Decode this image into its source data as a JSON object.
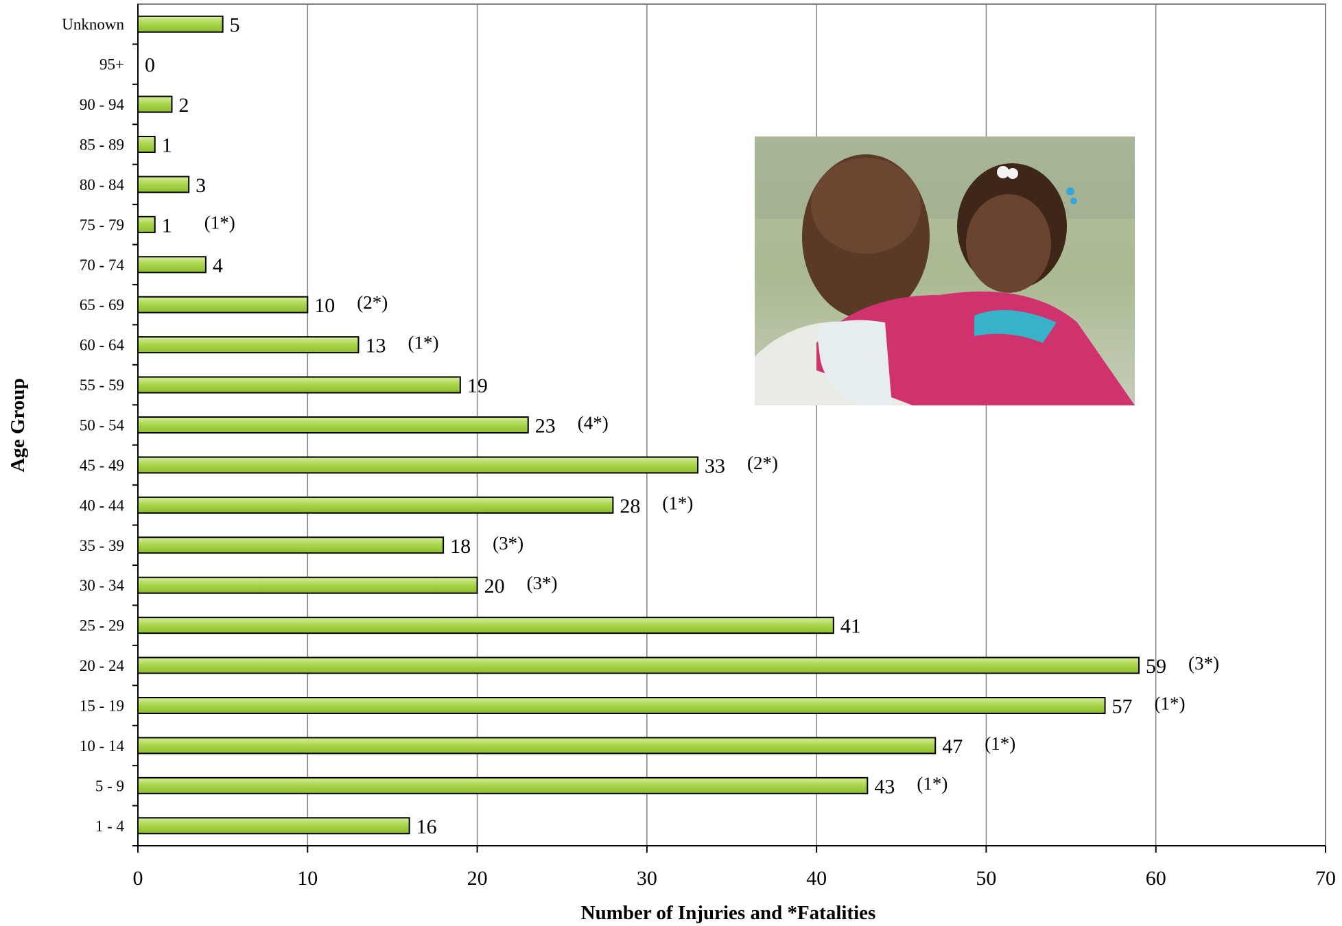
{
  "chart_data": {
    "type": "bar",
    "orientation": "horizontal",
    "xlabel": "Number of Injuries and *Fatalities",
    "ylabel": "Age Group",
    "xlim": [
      0,
      70
    ],
    "x_ticks": [
      "0",
      "10",
      "20",
      "30",
      "40",
      "50",
      "60",
      "70"
    ],
    "grid": "vertical",
    "bar_color": "#a8d44a",
    "categories": [
      "Unknown",
      "95+",
      "90 - 94",
      "85 - 89",
      "80 - 84",
      "75 - 79",
      "70 - 74",
      "65 - 69",
      "60 - 64",
      "55 - 59",
      "50 - 54",
      "45 - 49",
      "40 - 44",
      "35 - 39",
      "30 - 34",
      "25 - 29",
      "20 - 24",
      "15 - 19",
      "10 - 14",
      "5  -  9",
      "1  -  4"
    ],
    "values": [
      5,
      0,
      2,
      1,
      3,
      1,
      4,
      10,
      13,
      19,
      23,
      33,
      28,
      18,
      20,
      41,
      59,
      57,
      47,
      43,
      16
    ],
    "value_labels": [
      "5",
      "0",
      "2",
      "1",
      "3",
      "1",
      "4",
      "10",
      "13",
      "19",
      "23",
      "33",
      "28",
      "18",
      "20",
      "41",
      "59",
      "57",
      "47",
      "43",
      "16"
    ],
    "fatality_labels": [
      "",
      "",
      "",
      "",
      "",
      "(1*)",
      "",
      "(2*)",
      "(1*)",
      "",
      "(4*)",
      "(2*)",
      "(1*)",
      "(3*)",
      "(3*)",
      "",
      "(3*)",
      "(1*)",
      "(1*)",
      "(1*)",
      ""
    ]
  },
  "photo": {
    "icon": "father-daughter-photo"
  }
}
